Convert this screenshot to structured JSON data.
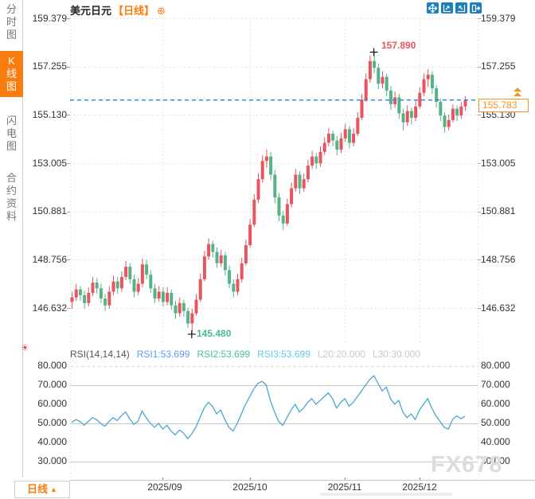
{
  "sidebar": {
    "items": [
      {
        "label": "分时图",
        "active": false
      },
      {
        "label": "K线图",
        "active": true
      },
      {
        "label": "闪电图",
        "active": false
      },
      {
        "label": "合约资料",
        "active": false
      }
    ]
  },
  "header": {
    "symbol": "美元日元",
    "period_tag": "【日线】",
    "add_icon": "⊕"
  },
  "toolbar": {
    "icons": [
      "move-icon",
      "fit-axis-left-icon",
      "fit-axis-right-icon",
      "exit-fullscreen-icon"
    ]
  },
  "main_chart": {
    "y_ticks": [
      "159.379",
      "157.255",
      "155.130",
      "153.005",
      "150.881",
      "148.756",
      "146.632"
    ],
    "x_ticks": [
      "2025/09",
      "2025/10",
      "2025/11",
      "2025/12"
    ],
    "current_price": "155.783",
    "high_label": "157.890",
    "low_label": "145.480"
  },
  "rsi_panel": {
    "title": "RSI(14,14,14)",
    "rsi1": "RSI1:53.699",
    "rsi2": "RSI2:53.699",
    "rsi3": "RSI3:53.699",
    "l20": "L20:20.000",
    "l30": "L30:30.000",
    "y_ticks": [
      "80.000",
      "70.000",
      "60.000",
      "50.000",
      "40.000",
      "30.000"
    ]
  },
  "footer": {
    "period_button": "日线",
    "period_button_arrow": "▲",
    "watermark": "FX678",
    "hot_icon": "☀"
  },
  "colors": {
    "accent_orange": "#f97d0e",
    "toolbar_blue": "#1b7fc0",
    "up_candle": "#e8555f",
    "down_candle": "#56b287",
    "current_price_line": "#1f86e0",
    "rsi_line": "#4ba7cf"
  },
  "chart_data": [
    {
      "type": "candlestick",
      "title": "美元日元 日线 (USD/JPY daily)",
      "x_labels": [
        "2025/09",
        "2025/10",
        "2025/11",
        "2025/12"
      ],
      "x_label_indices": [
        22,
        43,
        66,
        84
      ],
      "y_ticks": [
        159.379,
        157.255,
        155.13,
        153.005,
        150.881,
        148.756,
        146.632
      ],
      "ylim": [
        145.13,
        159.379
      ],
      "current_price": 155.783,
      "high_annotation": {
        "index": 73,
        "price": 157.89,
        "label": "157.890"
      },
      "low_annotation": {
        "index": 29,
        "price": 145.48,
        "label": "145.480"
      },
      "up_color": "#e8555f",
      "down_color": "#56b287",
      "candles": [
        [
          146.9,
          147.35,
          146.6,
          147.1
        ],
        [
          147.1,
          147.7,
          146.95,
          147.45
        ],
        [
          147.45,
          147.6,
          146.95,
          147.2
        ],
        [
          147.2,
          147.4,
          146.6,
          146.85
        ],
        [
          146.85,
          147.55,
          146.7,
          147.3
        ],
        [
          147.3,
          148.0,
          147.15,
          147.75
        ],
        [
          147.75,
          147.95,
          147.25,
          147.5
        ],
        [
          147.5,
          147.7,
          146.85,
          147.05
        ],
        [
          147.05,
          147.25,
          146.5,
          146.75
        ],
        [
          146.75,
          147.6,
          146.6,
          147.35
        ],
        [
          147.35,
          148.05,
          147.2,
          147.8
        ],
        [
          147.8,
          148.0,
          147.25,
          147.5
        ],
        [
          147.5,
          148.25,
          147.35,
          148.0
        ],
        [
          148.0,
          148.7,
          147.85,
          148.45
        ],
        [
          148.45,
          148.6,
          147.7,
          147.9
        ],
        [
          147.9,
          148.1,
          147.1,
          147.35
        ],
        [
          147.35,
          147.95,
          147.2,
          147.7
        ],
        [
          147.7,
          148.8,
          147.55,
          148.55
        ],
        [
          148.55,
          148.75,
          147.9,
          148.1
        ],
        [
          148.1,
          148.3,
          147.3,
          147.5
        ],
        [
          147.5,
          147.7,
          146.85,
          147.05
        ],
        [
          147.05,
          147.6,
          146.9,
          147.35
        ],
        [
          147.35,
          147.55,
          146.7,
          146.9
        ],
        [
          146.9,
          147.55,
          146.75,
          147.3
        ],
        [
          147.3,
          147.45,
          146.55,
          146.75
        ],
        [
          146.75,
          146.95,
          146.15,
          146.4
        ],
        [
          146.4,
          147.1,
          146.25,
          146.85
        ],
        [
          146.85,
          147.0,
          146.25,
          146.5
        ],
        [
          146.5,
          146.65,
          145.75,
          145.95
        ],
        [
          145.95,
          146.6,
          145.48,
          146.4
        ],
        [
          146.4,
          147.25,
          146.3,
          147.0
        ],
        [
          147.0,
          148.15,
          146.9,
          147.9
        ],
        [
          147.9,
          149.15,
          147.8,
          148.9
        ],
        [
          148.9,
          149.7,
          148.75,
          149.45
        ],
        [
          149.45,
          149.6,
          148.85,
          149.1
        ],
        [
          149.1,
          149.3,
          148.4,
          148.6
        ],
        [
          148.6,
          149.2,
          148.45,
          148.95
        ],
        [
          148.95,
          149.1,
          148.05,
          148.3
        ],
        [
          148.3,
          148.5,
          147.5,
          147.7
        ],
        [
          147.7,
          147.9,
          147.1,
          147.35
        ],
        [
          147.35,
          148.15,
          147.2,
          147.9
        ],
        [
          147.9,
          148.85,
          147.75,
          148.6
        ],
        [
          148.6,
          149.65,
          148.5,
          149.4
        ],
        [
          149.4,
          150.55,
          149.3,
          150.3
        ],
        [
          150.3,
          151.65,
          150.2,
          151.4
        ],
        [
          151.4,
          152.55,
          151.25,
          152.3
        ],
        [
          152.3,
          153.35,
          152.15,
          153.1
        ],
        [
          153.1,
          153.6,
          152.8,
          153.3
        ],
        [
          153.3,
          153.5,
          152.25,
          152.5
        ],
        [
          152.5,
          152.7,
          151.25,
          151.5
        ],
        [
          151.5,
          151.7,
          150.45,
          150.7
        ],
        [
          150.7,
          150.9,
          150.05,
          150.35
        ],
        [
          150.35,
          151.45,
          150.25,
          151.2
        ],
        [
          151.2,
          152.15,
          151.05,
          151.9
        ],
        [
          151.9,
          152.75,
          151.75,
          152.5
        ],
        [
          152.5,
          152.65,
          151.65,
          151.9
        ],
        [
          151.9,
          152.55,
          151.75,
          152.3
        ],
        [
          152.3,
          153.15,
          152.15,
          152.9
        ],
        [
          152.9,
          153.55,
          152.75,
          153.3
        ],
        [
          153.3,
          153.45,
          152.75,
          153.0
        ],
        [
          153.0,
          153.75,
          152.85,
          153.5
        ],
        [
          153.5,
          154.15,
          153.35,
          153.9
        ],
        [
          153.9,
          154.55,
          153.75,
          154.3
        ],
        [
          154.3,
          154.45,
          153.75,
          154.0
        ],
        [
          154.0,
          154.2,
          153.35,
          153.6
        ],
        [
          153.6,
          154.35,
          153.45,
          154.1
        ],
        [
          154.1,
          154.75,
          153.95,
          154.5
        ],
        [
          154.5,
          154.65,
          153.65,
          153.9
        ],
        [
          153.9,
          154.55,
          153.75,
          154.3
        ],
        [
          154.3,
          155.25,
          154.2,
          155.0
        ],
        [
          155.0,
          156.05,
          154.9,
          155.8
        ],
        [
          155.8,
          156.95,
          155.7,
          156.7
        ],
        [
          156.7,
          157.75,
          156.55,
          157.5
        ],
        [
          157.5,
          157.89,
          156.95,
          157.2
        ],
        [
          157.2,
          157.4,
          156.25,
          156.5
        ],
        [
          156.5,
          157.05,
          156.3,
          156.8
        ],
        [
          156.8,
          156.95,
          155.95,
          156.2
        ],
        [
          156.2,
          156.4,
          155.35,
          155.6
        ],
        [
          155.6,
          156.15,
          155.45,
          155.9
        ],
        [
          155.9,
          156.05,
          154.95,
          155.2
        ],
        [
          155.2,
          155.4,
          154.45,
          154.8
        ],
        [
          154.8,
          155.55,
          154.65,
          155.3
        ],
        [
          155.3,
          155.45,
          154.7,
          155.0
        ],
        [
          155.0,
          155.75,
          154.85,
          155.5
        ],
        [
          155.5,
          156.35,
          155.4,
          156.1
        ],
        [
          156.1,
          156.95,
          155.95,
          156.7
        ],
        [
          156.7,
          157.15,
          156.35,
          156.9
        ],
        [
          156.9,
          157.05,
          156.05,
          156.3
        ],
        [
          156.3,
          156.45,
          155.45,
          155.7
        ],
        [
          155.7,
          155.85,
          154.85,
          155.1
        ],
        [
          155.1,
          155.25,
          154.35,
          154.6
        ],
        [
          154.6,
          155.15,
          154.45,
          154.9
        ],
        [
          154.9,
          155.6,
          154.8,
          155.4
        ],
        [
          155.4,
          155.55,
          154.85,
          155.1
        ],
        [
          155.1,
          155.7,
          154.95,
          155.5
        ],
        [
          155.5,
          155.95,
          155.3,
          155.78
        ]
      ]
    },
    {
      "type": "line",
      "name": "RSI(14,14,14)",
      "ylim": [
        20.4,
        82.1
      ],
      "y_ticks": [
        80,
        70,
        60,
        50,
        40,
        30
      ],
      "grid_dashed": [
        80
      ],
      "grid_solid": [
        70,
        50,
        30
      ],
      "levels": {
        "L20": 20.0,
        "L30": 30.0
      },
      "last_values": {
        "RSI1": 53.699,
        "RSI2": 53.699,
        "RSI3": 53.699
      },
      "line_color": "#4ba7cf",
      "values": [
        50.5,
        52,
        51,
        49,
        51,
        53,
        52,
        50,
        48.5,
        51,
        53,
        51.5,
        54,
        56,
        52.5,
        49.5,
        51,
        56.5,
        53,
        50,
        48,
        50,
        47,
        49,
        46,
        44,
        46.5,
        45,
        42,
        44.5,
        48,
        53,
        58,
        61,
        59,
        55,
        57,
        52,
        48,
        46,
        50,
        55,
        60,
        64,
        68,
        71,
        72,
        70,
        62,
        56,
        51,
        49,
        53,
        57,
        60,
        56,
        58,
        61,
        63,
        60,
        62,
        64,
        66,
        63,
        58,
        61,
        63,
        59,
        61,
        64,
        67,
        70,
        73,
        75,
        71,
        67,
        69,
        63,
        60,
        62,
        56,
        53,
        55,
        52,
        57,
        60,
        63,
        58,
        54,
        51,
        48,
        47,
        52,
        54,
        52.5,
        53.7
      ]
    }
  ]
}
